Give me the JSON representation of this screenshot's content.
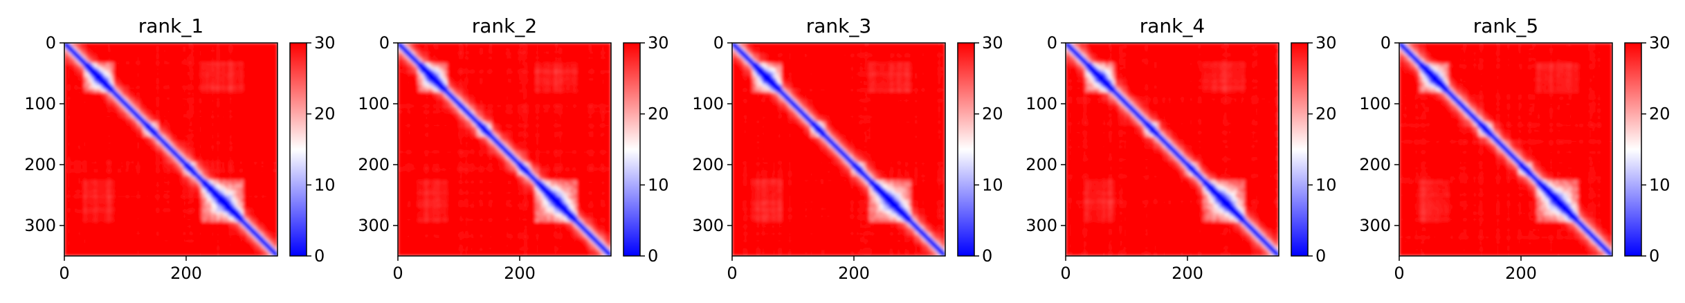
{
  "chart_data": {
    "type": "heatmap",
    "colormap": "bwr",
    "colorbar": {
      "range": [
        0,
        30
      ],
      "ticks": [
        0,
        10,
        20,
        30
      ]
    },
    "panels": [
      {
        "title": "rank_1",
        "xticks": [
          0,
          200
        ],
        "yticks": [
          0,
          100,
          200,
          300
        ],
        "extent": [
          0,
          350
        ]
      },
      {
        "title": "rank_2",
        "xticks": [
          0,
          200
        ],
        "yticks": [
          0,
          100,
          200,
          300
        ],
        "extent": [
          0,
          350
        ]
      },
      {
        "title": "rank_3",
        "xticks": [
          0,
          200
        ],
        "yticks": [
          0,
          100,
          200,
          300
        ],
        "extent": [
          0,
          350
        ]
      },
      {
        "title": "rank_4",
        "xticks": [
          0,
          200
        ],
        "yticks": [
          0,
          100,
          200,
          300
        ],
        "extent": [
          0,
          350
        ]
      },
      {
        "title": "rank_5",
        "xticks": [
          0,
          200
        ],
        "yticks": [
          0,
          100,
          200,
          300
        ],
        "extent": [
          0,
          350
        ]
      }
    ],
    "colors": {
      "low": "#0000ff",
      "mid": "#ffffff",
      "high": "#ff0000"
    }
  }
}
